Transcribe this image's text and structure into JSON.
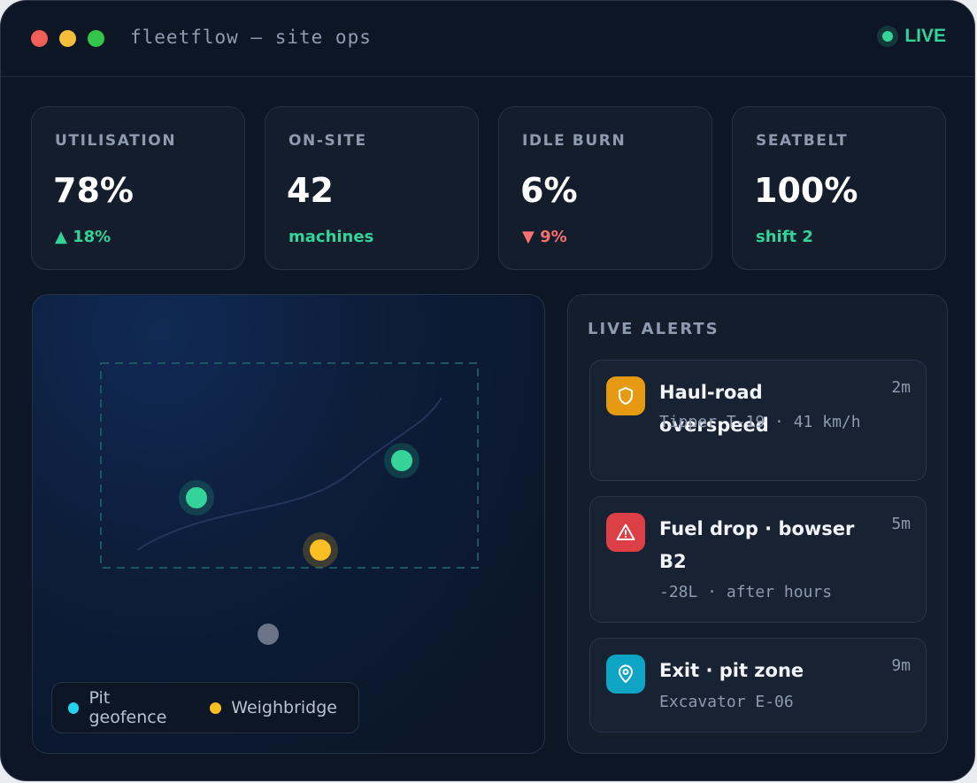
{
  "window": {
    "title": "fleetflow — site ops",
    "status": "LIVE"
  },
  "kpis": [
    {
      "label": "UTILISATION",
      "value": "78%",
      "sub": "▲ 18%",
      "tone": "up"
    },
    {
      "label": "ON-SITE",
      "value": "42",
      "sub": "machines",
      "tone": "up"
    },
    {
      "label": "IDLE BURN",
      "value": "6%",
      "sub": "▼ 9%",
      "tone": "down"
    },
    {
      "label": "SEATBELT",
      "value": "100%",
      "sub": "shift 2",
      "tone": "up"
    }
  ],
  "map": {
    "legend": [
      {
        "label": "Pit geofence",
        "color": "#22d3ee"
      },
      {
        "label": "Weighbridge",
        "color": "#fbbf24"
      }
    ],
    "markers": [
      {
        "status": "active",
        "color": "#34d399"
      },
      {
        "status": "active",
        "color": "#34d399"
      },
      {
        "status": "weighbridge",
        "color": "#fbbf24"
      },
      {
        "status": "offline",
        "color": "#6b7488"
      }
    ]
  },
  "alerts": {
    "title": "LIVE ALERTS",
    "items": [
      {
        "icon": "shield-icon",
        "color": "#e69a12",
        "title": "Haul-road overspeed",
        "meta": "Tipper T-19 · 41 km/h",
        "time": "2m"
      },
      {
        "icon": "warning-icon",
        "color": "#dc3f45",
        "title": "Fuel drop · bowser B2",
        "meta": "-28L · after hours",
        "time": "5m"
      },
      {
        "icon": "location-pin-icon",
        "color": "#0ea5c4",
        "title": "Exit · pit zone",
        "meta": "Excavator E-06",
        "time": "9m"
      }
    ]
  }
}
